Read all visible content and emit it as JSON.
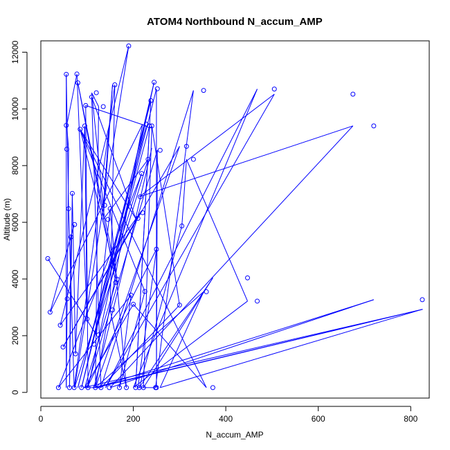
{
  "chart_data": {
    "type": "line",
    "title": "ATOM4 Northbound N_accum_AMP",
    "xlabel": "N_accum_AMP",
    "ylabel": "Altitude (m)",
    "xlim": [
      0,
      840
    ],
    "ylim": [
      -200,
      12400
    ],
    "x_ticks": [
      0,
      200,
      400,
      600,
      800
    ],
    "y_ticks": [
      0,
      2000,
      4000,
      6000,
      8000,
      10000,
      12000
    ],
    "grid": false,
    "legend": "none",
    "series_color": "#0000ff",
    "series": [
      {
        "x": [
          15,
          20,
          38,
          42,
          48,
          55,
          55,
          56,
          57,
          60,
          62,
          65,
          68,
          72,
          73,
          75,
          78,
          80,
          85,
          88,
          95,
          97,
          100,
          102,
          110,
          115,
          118,
          120,
          125,
          130,
          135,
          138,
          145,
          148,
          150,
          155,
          160,
          162,
          165,
          170,
          185,
          190,
          195,
          200,
          205,
          210,
          213,
          215,
          218,
          220,
          222,
          225,
          228,
          232,
          235,
          238,
          240,
          245,
          248,
          250,
          250,
          252,
          258,
          300,
          305,
          315,
          330,
          352,
          358,
          372,
          447,
          468,
          505,
          675,
          720,
          825
        ],
        "y": [
          4720,
          2830,
          170,
          2370,
          1600,
          11220,
          9420,
          8580,
          3300,
          6480,
          170,
          5480,
          7020,
          170,
          5920,
          1360,
          11230,
          10920,
          9280,
          170,
          9400,
          10120,
          2590,
          170,
          10420,
          1700,
          170,
          10570,
          2030,
          170,
          10080,
          6600,
          6100,
          170,
          6480,
          2910,
          10850,
          3880,
          3990,
          170,
          170,
          12220,
          3430,
          3110,
          170,
          6140,
          170,
          6900,
          7720,
          6340,
          170,
          3560,
          9460,
          8220,
          9400,
          10290,
          9400,
          10940,
          170,
          170,
          5050,
          10710,
          8540,
          3080,
          5870,
          8680,
          8220,
          10650,
          3550,
          170,
          4040,
          3220,
          10700,
          10520,
          9400,
          3270
        ],
        "order": [
          4720,
          2830,
          170,
          2370,
          1600,
          11220,
          9420,
          8580,
          3300,
          6480,
          170,
          5480,
          7020,
          170,
          5920,
          1360,
          11230,
          10920,
          9280,
          170,
          9400,
          10120,
          2590,
          170,
          10420,
          1700,
          170,
          10570,
          2030,
          170,
          10080,
          6600,
          6100,
          170,
          6480,
          2910,
          10850,
          3880,
          3990,
          170,
          170,
          12220,
          3430,
          3110,
          170,
          6140,
          170,
          6900,
          7720,
          6340,
          170,
          3560,
          9460,
          8220,
          9400,
          10290,
          9400,
          10940,
          170,
          170,
          5050,
          10710,
          8540,
          3080,
          5870,
          8680,
          8220,
          10650,
          3550,
          170,
          4040,
          3220,
          10700,
          10520,
          9400,
          3270
        ]
      }
    ]
  }
}
